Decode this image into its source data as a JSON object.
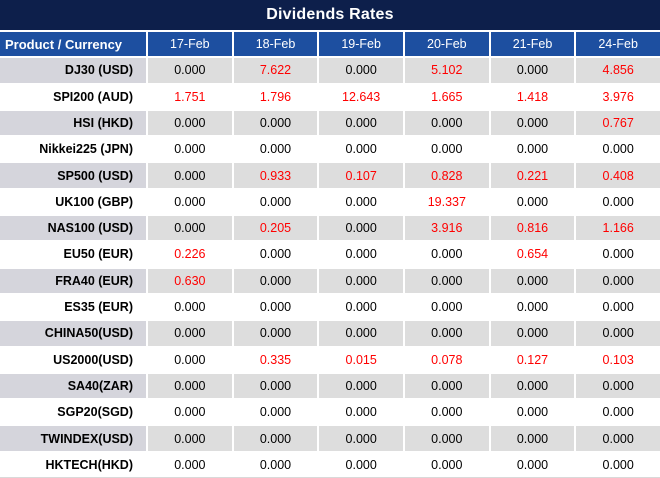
{
  "chart_data": {
    "type": "table",
    "title": "Dividends Rates",
    "columns": [
      "Product / Currency",
      "17-Feb",
      "18-Feb",
      "19-Feb",
      "20-Feb",
      "21-Feb",
      "24-Feb"
    ],
    "rows": [
      {
        "product": "DJ30 (USD)",
        "values": [
          "0.000",
          "7.622",
          "0.000",
          "5.102",
          "0.000",
          "4.856"
        ]
      },
      {
        "product": "SPI200 (AUD)",
        "values": [
          "1.751",
          "1.796",
          "12.643",
          "1.665",
          "1.418",
          "3.976"
        ]
      },
      {
        "product": "HSI (HKD)",
        "values": [
          "0.000",
          "0.000",
          "0.000",
          "0.000",
          "0.000",
          "0.767"
        ]
      },
      {
        "product": "Nikkei225 (JPN)",
        "values": [
          "0.000",
          "0.000",
          "0.000",
          "0.000",
          "0.000",
          "0.000"
        ]
      },
      {
        "product": "SP500 (USD)",
        "values": [
          "0.000",
          "0.933",
          "0.107",
          "0.828",
          "0.221",
          "0.408"
        ]
      },
      {
        "product": "UK100 (GBP)",
        "values": [
          "0.000",
          "0.000",
          "0.000",
          "19.337",
          "0.000",
          "0.000"
        ]
      },
      {
        "product": "NAS100 (USD)",
        "values": [
          "0.000",
          "0.205",
          "0.000",
          "3.916",
          "0.816",
          "1.166"
        ]
      },
      {
        "product": "EU50 (EUR)",
        "values": [
          "0.226",
          "0.000",
          "0.000",
          "0.000",
          "0.654",
          "0.000"
        ]
      },
      {
        "product": "FRA40 (EUR)",
        "values": [
          "0.630",
          "0.000",
          "0.000",
          "0.000",
          "0.000",
          "0.000"
        ]
      },
      {
        "product": "ES35 (EUR)",
        "values": [
          "0.000",
          "0.000",
          "0.000",
          "0.000",
          "0.000",
          "0.000"
        ]
      },
      {
        "product": "CHINA50(USD)",
        "values": [
          "0.000",
          "0.000",
          "0.000",
          "0.000",
          "0.000",
          "0.000"
        ]
      },
      {
        "product": "US2000(USD)",
        "values": [
          "0.000",
          "0.335",
          "0.015",
          "0.078",
          "0.127",
          "0.103"
        ]
      },
      {
        "product": "SA40(ZAR)",
        "values": [
          "0.000",
          "0.000",
          "0.000",
          "0.000",
          "0.000",
          "0.000"
        ]
      },
      {
        "product": "SGP20(SGD)",
        "values": [
          "0.000",
          "0.000",
          "0.000",
          "0.000",
          "0.000",
          "0.000"
        ]
      },
      {
        "product": "TWINDEX(USD)",
        "values": [
          "0.000",
          "0.000",
          "0.000",
          "0.000",
          "0.000",
          "0.000"
        ]
      },
      {
        "product": "HKTECH(HKD)",
        "values": [
          "0.000",
          "0.000",
          "0.000",
          "0.000",
          "0.000",
          "0.000"
        ]
      }
    ],
    "layout": {
      "stripe_pattern": "first data row shaded, alternating",
      "value_alignment": "center",
      "product_alignment": "right"
    }
  },
  "colors": {
    "title_bg": "#0d1f4b",
    "header_bg": "#1d4fa0",
    "stripe_label_bg": "#d5d5dc",
    "stripe_value_bg": "#dddddd",
    "value_zero": "#000000",
    "value_nonzero": "#ff0000",
    "header_text": "#ffffff"
  }
}
